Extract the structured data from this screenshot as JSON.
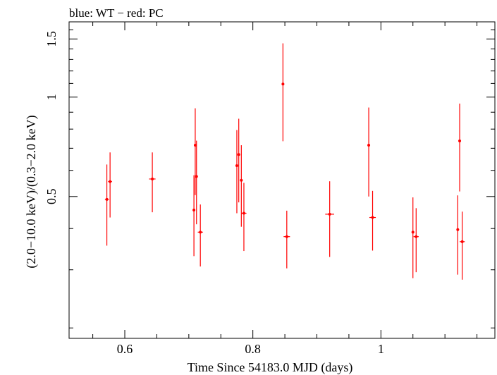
{
  "chart_data": {
    "type": "scatter",
    "title": "blue: WT − red: PC",
    "xlabel": "Time Since 54183.0 MJD (days)",
    "ylabel": "(2.0−10.0 keV)/(0.3−2.0 keV)",
    "xlim": [
      0.513,
      1.178
    ],
    "ylim": [
      0.186,
      1.69
    ],
    "y_scale": "log",
    "x_ticks": [
      0.6,
      0.8,
      1
    ],
    "x_tick_labels": [
      "0.6",
      "0.8",
      "1"
    ],
    "y_ticks": [
      0.5,
      1,
      1.5
    ],
    "y_tick_labels": [
      "0.5",
      "1",
      "1.5"
    ],
    "grid": false,
    "colors": {
      "axes": "#000000",
      "PC": "#ff0000"
    },
    "series": [
      {
        "color": "#ff0000",
        "points": [
          {
            "x": 0.572,
            "xerr": 0.003,
            "y": 0.49,
            "ylo": 0.355,
            "yhi": 0.625
          },
          {
            "x": 0.577,
            "xerr": 0.003,
            "y": 0.555,
            "ylo": 0.432,
            "yhi": 0.68
          },
          {
            "x": 0.643,
            "xerr": 0.005,
            "y": 0.565,
            "ylo": 0.448,
            "yhi": 0.68
          },
          {
            "x": 0.708,
            "xerr": 0.002,
            "y": 0.455,
            "ylo": 0.33,
            "yhi": 0.58
          },
          {
            "x": 0.71,
            "xerr": 0.002,
            "y": 0.715,
            "ylo": 0.505,
            "yhi": 0.925
          },
          {
            "x": 0.712,
            "xerr": 0.002,
            "y": 0.575,
            "ylo": 0.412,
            "yhi": 0.738
          },
          {
            "x": 0.718,
            "xerr": 0.004,
            "y": 0.39,
            "ylo": 0.307,
            "yhi": 0.473
          },
          {
            "x": 0.775,
            "xerr": 0.002,
            "y": 0.62,
            "ylo": 0.445,
            "yhi": 0.795
          },
          {
            "x": 0.778,
            "xerr": 0.002,
            "y": 0.67,
            "ylo": 0.48,
            "yhi": 0.86
          },
          {
            "x": 0.782,
            "xerr": 0.002,
            "y": 0.56,
            "ylo": 0.405,
            "yhi": 0.715
          },
          {
            "x": 0.786,
            "xerr": 0.004,
            "y": 0.445,
            "ylo": 0.342,
            "yhi": 0.55
          },
          {
            "x": 0.847,
            "xerr": 0.002,
            "y": 1.095,
            "ylo": 0.735,
            "yhi": 1.455
          },
          {
            "x": 0.853,
            "xerr": 0.005,
            "y": 0.378,
            "ylo": 0.303,
            "yhi": 0.453
          },
          {
            "x": 0.92,
            "xerr": 0.007,
            "y": 0.442,
            "ylo": 0.328,
            "yhi": 0.556
          },
          {
            "x": 0.981,
            "xerr": 0.002,
            "y": 0.715,
            "ylo": 0.5,
            "yhi": 0.93
          },
          {
            "x": 0.987,
            "xerr": 0.005,
            "y": 0.432,
            "ylo": 0.343,
            "yhi": 0.52
          },
          {
            "x": 1.05,
            "xerr": 0.002,
            "y": 0.39,
            "ylo": 0.283,
            "yhi": 0.497
          },
          {
            "x": 1.055,
            "xerr": 0.004,
            "y": 0.378,
            "ylo": 0.295,
            "yhi": 0.461
          },
          {
            "x": 1.12,
            "xerr": 0.002,
            "y": 0.397,
            "ylo": 0.29,
            "yhi": 0.504
          },
          {
            "x": 1.123,
            "xerr": 0.002,
            "y": 0.737,
            "ylo": 0.518,
            "yhi": 0.956
          },
          {
            "x": 1.127,
            "xerr": 0.004,
            "y": 0.365,
            "ylo": 0.28,
            "yhi": 0.45
          }
        ]
      }
    ]
  }
}
